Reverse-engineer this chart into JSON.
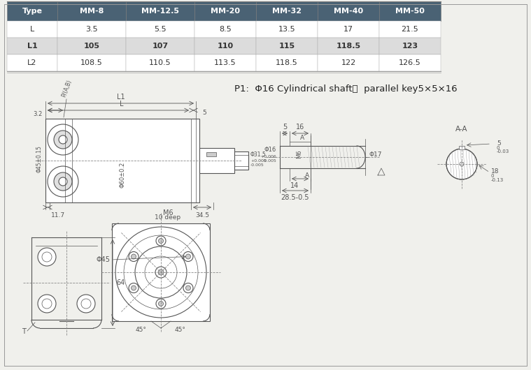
{
  "table_header": [
    "Type",
    "MM-8",
    "MM-12.5",
    "MM-20",
    "MM-32",
    "MM-40",
    "MM-50"
  ],
  "table_rows": [
    [
      "L",
      "3.5",
      "5.5",
      "8.5",
      "13.5",
      "17",
      "21.5"
    ],
    [
      "L1",
      "105",
      "107",
      "110",
      "115",
      "118.5",
      "123"
    ],
    [
      "L2",
      "108.5",
      "110.5",
      "113.5",
      "118.5",
      "122",
      "126.5"
    ]
  ],
  "header_bg": "#4a6274",
  "header_fg": "#ffffff",
  "row_bg_odd": "#dcdcdc",
  "row_bg_even": "#ffffff",
  "shaft_label": "P1:  Φ16 Cylindrical shaft，  parallel key5×5×16",
  "bg_color": "#f0f0ec"
}
